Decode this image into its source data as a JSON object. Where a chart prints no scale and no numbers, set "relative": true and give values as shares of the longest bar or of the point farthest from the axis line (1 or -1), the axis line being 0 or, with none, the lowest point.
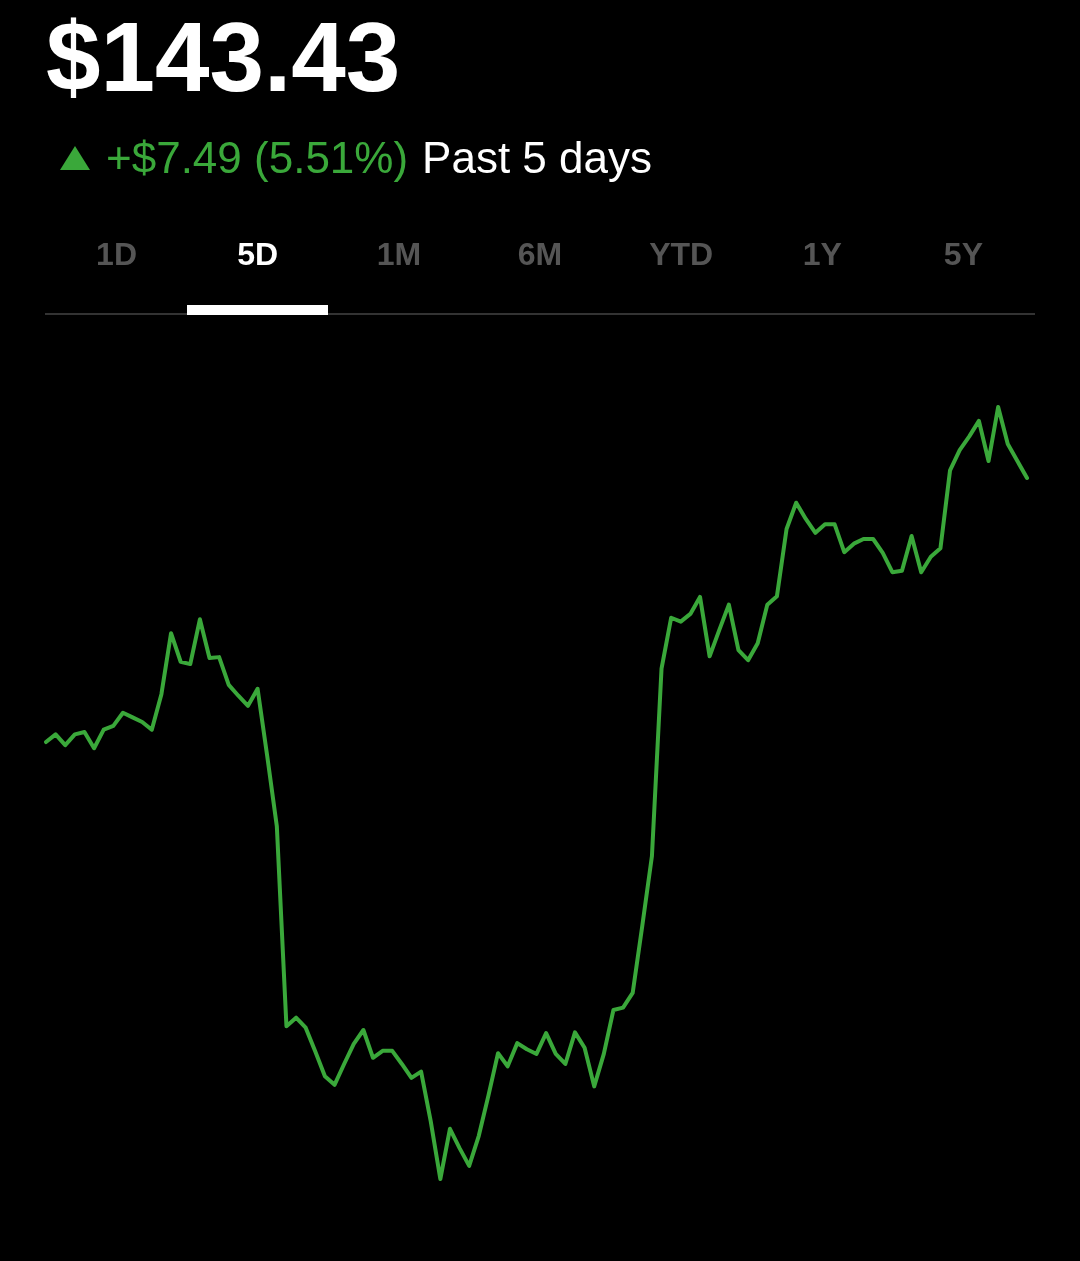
{
  "chart_data": {
    "type": "line",
    "title": "$143.43",
    "subtitle": "+$7.49 (5.51%)",
    "annotations": [
      "Past 5 days",
      "1D",
      "5D",
      "1M",
      "6M",
      "YTD",
      "1Y",
      "5Y"
    ],
    "relative": true,
    "color": "#3aa83a",
    "marker": "none",
    "grid": false,
    "legend": false,
    "categories": [
      null,
      null,
      null,
      null,
      null,
      null,
      null,
      null,
      null,
      null,
      null,
      null,
      null,
      null,
      null,
      null,
      null,
      null,
      null,
      null,
      null,
      null,
      null,
      null,
      null,
      null,
      null,
      null,
      null,
      null,
      null,
      null,
      null,
      null,
      null,
      null,
      null,
      null,
      null,
      null,
      null,
      null,
      null,
      null,
      null,
      null,
      null,
      null,
      null,
      null,
      null,
      null,
      null,
      null,
      null,
      null,
      null,
      null,
      null,
      null,
      null,
      null,
      null,
      null,
      null,
      null,
      null,
      null,
      null,
      null,
      null,
      null,
      null,
      null,
      null,
      null,
      null,
      null,
      null,
      null,
      null,
      null,
      null,
      null,
      null,
      null,
      null,
      null,
      null,
      null,
      null,
      null,
      null,
      null,
      null,
      null,
      null,
      null,
      null,
      null,
      null,
      null,
      null
    ],
    "values": [
      0.566,
      0.576,
      0.562,
      0.576,
      0.579,
      0.558,
      0.582,
      0.587,
      0.604,
      0.598,
      0.592,
      0.582,
      0.628,
      0.707,
      0.67,
      0.667,
      0.725,
      0.675,
      0.676,
      0.64,
      0.626,
      0.613,
      0.635,
      0.548,
      0.457,
      0.198,
      0.209,
      0.196,
      0.165,
      0.133,
      0.122,
      0.149,
      0.175,
      0.193,
      0.157,
      0.166,
      0.166,
      0.149,
      0.131,
      0.139,
      0.075,
      0,
      0.065,
      0.04,
      0.017,
      0.056,
      0.108,
      0.163,
      0.146,
      0.176,
      0.168,
      0.162,
      0.189,
      0.162,
      0.149,
      0.19,
      0.17,
      0.12,
      0.162,
      0.219,
      0.222,
      0.241,
      0.328,
      0.418,
      0.661,
      0.727,
      0.722,
      0.732,
      0.754,
      0.677,
      0.711,
      0.744,
      0.685,
      0.672,
      0.694,
      0.744,
      0.755,
      0.842,
      0.876,
      0.855,
      0.837,
      0.848,
      0.848,
      0.812,
      0.823,
      0.829,
      0.829,
      0.811,
      0.786,
      0.788,
      0.833,
      0.786,
      0.806,
      0.817,
      0.918,
      0.944,
      0.962,
      0.982,
      0.93,
      1,
      0.952,
      0.93,
      0.908
    ]
  }
}
